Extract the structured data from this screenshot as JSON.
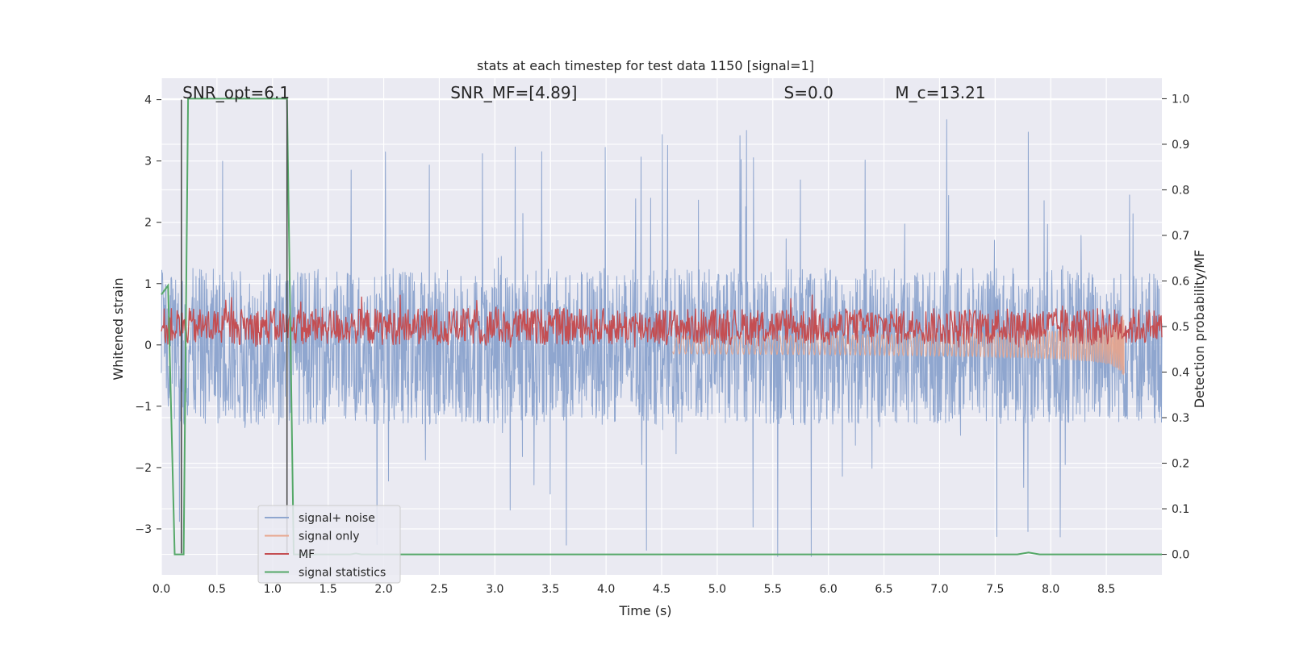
{
  "chart_data": {
    "type": "line",
    "title": "stats at each timestep for test data 1150 [signal=1]",
    "xlabel": "Time (s)",
    "ylabel": "Whitened strain",
    "ylabel_right": "Detection probability/MF",
    "xlim": [
      0.0,
      9.0
    ],
    "ylim": [
      -3.75,
      4.35
    ],
    "ylim_right": [
      -0.045,
      1.045
    ],
    "xticks": [
      0.0,
      0.5,
      1.0,
      1.5,
      2.0,
      2.5,
      3.0,
      3.5,
      4.0,
      4.5,
      5.0,
      5.5,
      6.0,
      6.5,
      7.0,
      7.5,
      8.0,
      8.5
    ],
    "xtick_labels": [
      "0.0",
      "0.5",
      "1.0",
      "1.5",
      "2.0",
      "2.5",
      "3.0",
      "3.5",
      "4.0",
      "4.5",
      "5.0",
      "5.5",
      "6.0",
      "6.5",
      "7.0",
      "7.5",
      "8.0",
      "8.5"
    ],
    "yticks": [
      -3,
      -2,
      -1,
      0,
      1,
      2,
      3,
      4
    ],
    "ytick_labels": [
      "−3",
      "−2",
      "−1",
      "0",
      "1",
      "2",
      "3",
      "4"
    ],
    "yticks_right": [
      0.0,
      0.1,
      0.2,
      0.3,
      0.4,
      0.5,
      0.6,
      0.7,
      0.8,
      0.9,
      1.0
    ],
    "ytick_labels_right": [
      "0.0",
      "0.1",
      "0.2",
      "0.3",
      "0.4",
      "0.5",
      "0.6",
      "0.7",
      "0.8",
      "0.9",
      "1.0"
    ],
    "grid": true,
    "legend_position": "lower-left",
    "annotations": [
      {
        "text": "SNR_opt=6.1",
        "x": 0.19,
        "y": 4.1
      },
      {
        "text": "SNR_MF=[4.89]",
        "x": 2.6,
        "y": 4.1
      },
      {
        "text": "S=0.0",
        "x": 5.6,
        "y": 4.1
      },
      {
        "text": "M_c=13.21",
        "x": 6.6,
        "y": 4.1
      }
    ],
    "vertical_markers": [
      0.18,
      1.13
    ],
    "series": [
      {
        "name": "signal+ noise",
        "color": "#8fa6cf",
        "axis": "left",
        "kind": "noise",
        "band": [
          -1.3,
          1.25
        ],
        "peak_range": [
          -3.45,
          4.0
        ]
      },
      {
        "name": "signal only",
        "color": "#e8a58c",
        "axis": "left",
        "kind": "chirp",
        "x_range": [
          4.6,
          8.66
        ],
        "amplitude_end": 1.0
      },
      {
        "name": "MF",
        "color": "#c44e52",
        "axis": "right",
        "kind": "noise",
        "band": [
          0.46,
          0.54
        ],
        "peak_range": [
          0.455,
          0.6
        ]
      },
      {
        "name": "signal statistics",
        "color": "#55a868",
        "axis": "right",
        "kind": "line",
        "x": [
          0.0,
          0.06,
          0.12,
          0.2,
          0.24,
          0.3,
          1.1,
          1.13,
          1.19,
          1.23,
          1.7,
          1.75,
          1.8,
          7.7,
          7.8,
          7.9,
          9.0
        ],
        "y": [
          0.57,
          0.59,
          0.0,
          0.0,
          1.0,
          1.0,
          1.0,
          1.0,
          0.0,
          0.0,
          0.0,
          0.002,
          0.0,
          0.0,
          0.004,
          0.0,
          0.0
        ]
      }
    ]
  }
}
